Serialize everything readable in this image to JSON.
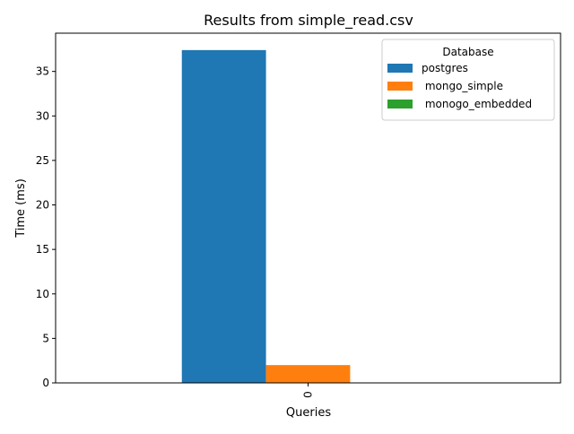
{
  "chart_data": {
    "type": "bar",
    "title": "Results from simple_read.csv",
    "xlabel": "Queries",
    "ylabel": "Time (ms)",
    "categories": [
      "0"
    ],
    "ylim": [
      0,
      39.3
    ],
    "yticks": [
      0,
      5,
      10,
      15,
      20,
      25,
      30,
      35
    ],
    "grid": false,
    "legend": {
      "title": "Database",
      "placement": "top-right"
    },
    "series": [
      {
        "name": "postgres",
        "values": [
          37.4
        ],
        "color": "#1f77b4"
      },
      {
        "name": " mongo_simple",
        "values": [
          2.0
        ],
        "color": "#ff7f0e"
      },
      {
        "name": " monogo_embedded",
        "values": [
          0.0
        ],
        "color": "#2ca02c"
      }
    ]
  }
}
